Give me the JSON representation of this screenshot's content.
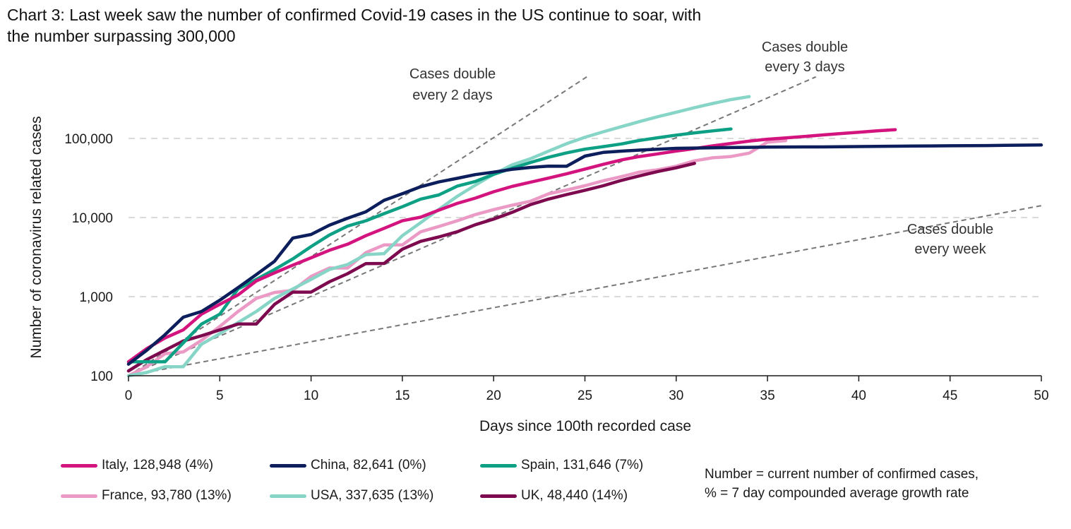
{
  "title": {
    "line1": "Chart 3: Last week saw the number of confirmed Covid-19 cases in the US continue to soar, with",
    "line2": "the number surpassing 300,000"
  },
  "note": {
    "line1": "Number = current number of confirmed cases,",
    "line2": "% = 7 day compounded average growth rate"
  },
  "chart_data": {
    "type": "line",
    "xlabel": "Days since 100th recorded case",
    "ylabel": "Number of coronavirus related cases",
    "y_scale": "log",
    "xlim": [
      0,
      50
    ],
    "ylim": [
      100,
      600000
    ],
    "x_ticks": [
      "0",
      "5",
      "10",
      "15",
      "20",
      "25",
      "30",
      "35",
      "40",
      "45",
      "50"
    ],
    "y_ticks": [
      {
        "value": 100,
        "label": "100"
      },
      {
        "value": 1000,
        "label": "1,000"
      },
      {
        "value": 10000,
        "label": "10,000"
      },
      {
        "value": 100000,
        "label": "100,000"
      }
    ],
    "grid": "horizontal dashed",
    "legend_position": "bottom",
    "series": [
      {
        "name": "Italy, 128,948 (4%)",
        "color": "#d4147e",
        "x": [
          0,
          1,
          2,
          3,
          4,
          5,
          6,
          7,
          8,
          9,
          10,
          11,
          12,
          13,
          14,
          15,
          16,
          17,
          18,
          19,
          20,
          21,
          22,
          23,
          24,
          25,
          26,
          27,
          28,
          29,
          30,
          31,
          32,
          33,
          34,
          35,
          36,
          37,
          38,
          39,
          40,
          41,
          42
        ],
        "y": [
          150,
          220,
          300,
          380,
          600,
          800,
          1050,
          1580,
          2000,
          2500,
          3100,
          3850,
          4600,
          5900,
          7300,
          9100,
          10100,
          12400,
          15100,
          17600,
          21200,
          24700,
          27900,
          31500,
          35700,
          41000,
          47000,
          53500,
          59100,
          63900,
          69200,
          74400,
          80600,
          86500,
          92500,
          97700,
          101700,
          105800,
          110600,
          115200,
          119800,
          124600,
          128948
        ]
      },
      {
        "name": "China, 82,641 (0%)",
        "color": "#0c1f5c",
        "x": [
          0,
          1,
          2,
          3,
          4,
          5,
          6,
          7,
          8,
          9,
          10,
          11,
          12,
          13,
          14,
          15,
          16,
          17,
          18,
          19,
          20,
          21,
          22,
          23,
          24,
          25,
          26,
          27,
          28,
          29,
          30,
          31,
          32,
          33,
          34,
          35,
          36,
          37,
          38,
          39,
          40,
          41,
          42,
          43,
          44,
          45,
          46,
          47,
          48,
          49,
          50
        ],
        "y": [
          140,
          210,
          330,
          550,
          650,
          900,
          1300,
          1900,
          2800,
          5500,
          6100,
          8000,
          9800,
          11800,
          16500,
          20000,
          24500,
          28200,
          31300,
          34900,
          37500,
          40600,
          43000,
          44700,
          44500,
          59800,
          66500,
          69000,
          71300,
          73200,
          75000,
          75600,
          76200,
          76700,
          77100,
          77700,
          78000,
          78100,
          78200,
          78600,
          78900,
          79300,
          79800,
          80100,
          80400,
          80800,
          81000,
          81300,
          81800,
          82200,
          82641
        ]
      },
      {
        "name": "Spain, 131,646 (7%)",
        "color": "#0ea085",
        "x": [
          0,
          1,
          2,
          3,
          4,
          5,
          6,
          7,
          8,
          9,
          10,
          11,
          12,
          13,
          14,
          15,
          16,
          17,
          18,
          19,
          20,
          21,
          22,
          23,
          24,
          25,
          26,
          27,
          28,
          29,
          30,
          31,
          32,
          33
        ],
        "y": [
          150,
          150,
          150,
          260,
          450,
          600,
          1250,
          1650,
          2200,
          3000,
          4300,
          6000,
          7800,
          9100,
          11200,
          13700,
          17100,
          19300,
          24900,
          28600,
          35100,
          42000,
          49500,
          57800,
          65700,
          73200,
          78800,
          85200,
          94400,
          102100,
          110200,
          117700,
          124700,
          131646
        ]
      },
      {
        "name": "France, 93,780 (13%)",
        "color": "#eb9ac6",
        "x": [
          0,
          1,
          2,
          3,
          4,
          5,
          6,
          7,
          8,
          9,
          10,
          11,
          12,
          13,
          14,
          15,
          16,
          17,
          18,
          19,
          20,
          21,
          22,
          23,
          24,
          25,
          26,
          27,
          28,
          29,
          30,
          31,
          32,
          33,
          34,
          35,
          36
        ],
        "y": [
          100,
          130,
          190,
          200,
          280,
          420,
          650,
          950,
          1130,
          1200,
          1800,
          2300,
          2300,
          3600,
          4500,
          4500,
          6600,
          7700,
          9100,
          10900,
          12600,
          14300,
          16000,
          19900,
          22300,
          25200,
          29100,
          32900,
          37600,
          40200,
          44600,
          52100,
          56900,
          59100,
          65200,
          89900,
          93780
        ]
      },
      {
        "name": "USA, 337,635 (13%)",
        "color": "#86d5c6",
        "x": [
          0,
          1,
          2,
          3,
          4,
          5,
          6,
          7,
          8,
          9,
          10,
          11,
          12,
          13,
          14,
          15,
          16,
          17,
          18,
          19,
          20,
          21,
          22,
          23,
          24,
          25,
          26,
          27,
          28,
          29,
          30,
          31,
          32,
          33,
          34
        ],
        "y": [
          100,
          110,
          130,
          130,
          250,
          340,
          470,
          650,
          950,
          1250,
          1650,
          2200,
          2550,
          3400,
          3500,
          5900,
          8600,
          12700,
          18500,
          25700,
          35200,
          46300,
          55200,
          68900,
          85800,
          103300,
          121400,
          140900,
          163500,
          188200,
          214500,
          244900,
          276500,
          309700,
          337635
        ]
      },
      {
        "name": "UK, 48,440 (14%)",
        "color": "#7d0a4f",
        "x": [
          0,
          1,
          2,
          3,
          4,
          5,
          6,
          7,
          8,
          9,
          10,
          11,
          12,
          13,
          14,
          15,
          16,
          17,
          18,
          19,
          20,
          21,
          22,
          23,
          24,
          25,
          26,
          27,
          28,
          29,
          30,
          31
        ],
        "y": [
          115,
          160,
          210,
          275,
          320,
          380,
          450,
          450,
          800,
          1140,
          1140,
          1540,
          1950,
          2620,
          2630,
          3980,
          5000,
          5680,
          6600,
          8100,
          9550,
          11600,
          14500,
          17100,
          19500,
          22100,
          25200,
          29500,
          33700,
          38200,
          42500,
          48440
        ]
      }
    ],
    "reference_lines": [
      {
        "label_line1": "Cases double",
        "label_line2": "every 2 days",
        "doubling_days": 2,
        "color": "#777777"
      },
      {
        "label_line1": "Cases double",
        "label_line2": "every 3 days",
        "doubling_days": 3,
        "color": "#777777"
      },
      {
        "label_line1": "Cases double",
        "label_line2": "every week",
        "doubling_days": 7,
        "color": "#777777"
      }
    ]
  }
}
